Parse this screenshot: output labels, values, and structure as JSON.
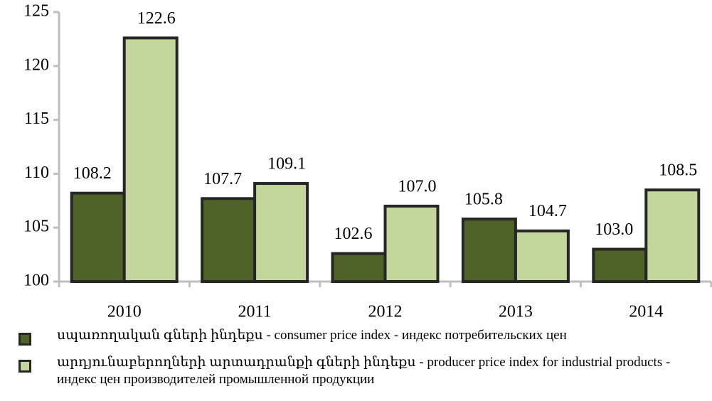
{
  "chart_data": {
    "type": "bar",
    "categories": [
      "2010",
      "2011",
      "2012",
      "2013",
      "2014"
    ],
    "series": [
      {
        "name": "սպառողական գների ինդեքս - consumer price index - индекс потребительских цен",
        "color": "#4f6228",
        "values": [
          108.2,
          107.7,
          102.6,
          105.8,
          103.0
        ],
        "value_labels": [
          "108.2",
          "107.7",
          "102.6",
          "105.8",
          "103.0"
        ]
      },
      {
        "name": "արդյունաբերողների արտադրանքի գների ինդեքս - producer price index for industrial products - индекс цен производителей промышленной продукции",
        "color": "#c3d69b",
        "values": [
          122.6,
          109.1,
          107.0,
          104.7,
          108.5
        ],
        "value_labels": [
          "122.6",
          "109.1",
          "107.0",
          "104.7",
          "108.5"
        ]
      }
    ],
    "ylim": [
      100,
      125
    ],
    "yticks": [
      100,
      105,
      110,
      115,
      120,
      125
    ],
    "grid": false
  }
}
